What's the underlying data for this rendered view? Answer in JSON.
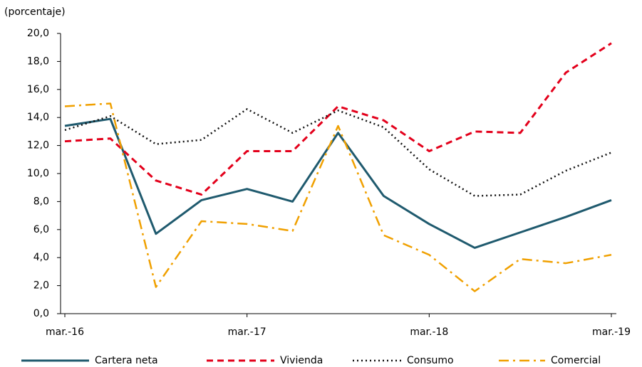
{
  "chart_data": {
    "type": "line",
    "ylabel": "(porcentaje)",
    "categories": [
      "mar.-16",
      null,
      null,
      null,
      "mar.-17",
      null,
      null,
      null,
      "mar.-18",
      null,
      null,
      null,
      "mar.-19"
    ],
    "series": [
      {
        "name": "Cartera neta",
        "color": "#1f5a6e",
        "dash": "solid",
        "values": [
          13.4,
          13.9,
          5.7,
          8.1,
          8.9,
          8.0,
          12.9,
          8.4,
          6.4,
          4.7,
          5.8,
          6.9,
          8.1
        ]
      },
      {
        "name": "Vivienda",
        "color": "#e3001b",
        "dash": "dashed",
        "values": [
          12.3,
          12.5,
          9.5,
          8.5,
          11.6,
          11.6,
          14.8,
          13.8,
          11.6,
          13.0,
          12.9,
          17.2,
          19.3
        ]
      },
      {
        "name": "Consumo",
        "color": "#111111",
        "dash": "dotted",
        "values": [
          13.1,
          14.1,
          12.1,
          12.4,
          14.6,
          12.9,
          14.5,
          13.3,
          10.3,
          8.4,
          8.5,
          10.2,
          11.5
        ]
      },
      {
        "name": "Comercial",
        "color": "#f0a000",
        "dash": "dashdot",
        "values": [
          14.8,
          15.0,
          1.9,
          6.6,
          6.4,
          5.9,
          13.4,
          5.6,
          4.2,
          1.6,
          3.9,
          3.6,
          4.2
        ]
      }
    ],
    "ylim": [
      0,
      20
    ],
    "yticks": [
      {
        "value": 0,
        "label": "0,0"
      },
      {
        "value": 2,
        "label": "2,0"
      },
      {
        "value": 4,
        "label": "4,0"
      },
      {
        "value": 6,
        "label": "6,0"
      },
      {
        "value": 8,
        "label": "8,0"
      },
      {
        "value": 10,
        "label": "10,0"
      },
      {
        "value": 12,
        "label": "12,0"
      },
      {
        "value": 14,
        "label": "14,0"
      },
      {
        "value": 16,
        "label": "16,0"
      },
      {
        "value": 18,
        "label": "18,0"
      },
      {
        "value": 20,
        "label": "20,0"
      }
    ],
    "grid": false,
    "legend": "bottom"
  }
}
